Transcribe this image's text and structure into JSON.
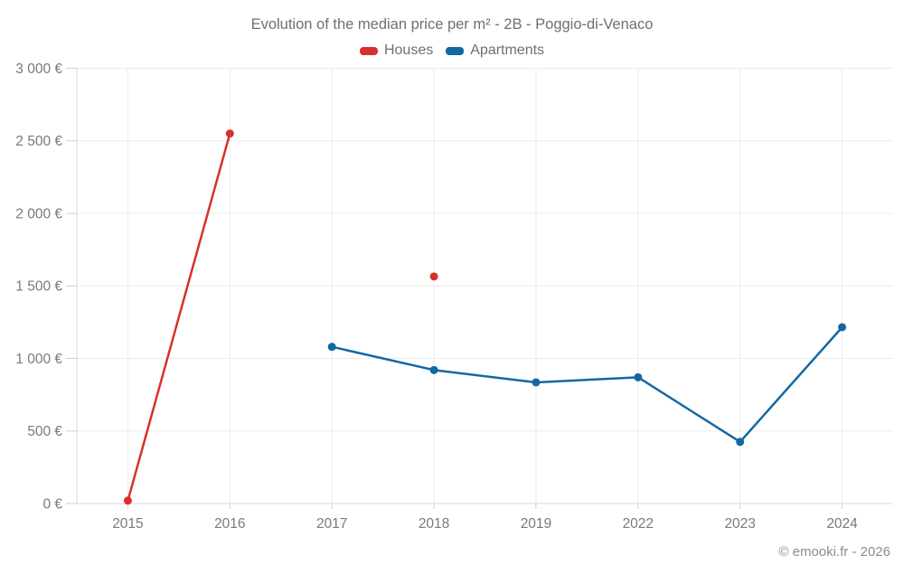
{
  "header": {
    "title": "Evolution of the median price per m² - 2B - Poggio-di-Venaco"
  },
  "legend": [
    {
      "label": "Houses",
      "color": "#d8302a"
    },
    {
      "label": "Apartments",
      "color": "#1268a3"
    }
  ],
  "footer": {
    "credit": "© emooki.fr - 2026"
  },
  "chart_data": {
    "type": "line",
    "title": "Evolution of the median price per m² - 2B - Poggio-di-Venaco",
    "categories": [
      "2015",
      "2016",
      "2017",
      "2018",
      "2019",
      "2022",
      "2023",
      "2024"
    ],
    "series": [
      {
        "name": "Houses",
        "color": "#d8302a",
        "values": [
          20,
          2550,
          null,
          1565,
          null,
          null,
          null,
          null
        ]
      },
      {
        "name": "Apartments",
        "color": "#1268a3",
        "values": [
          null,
          null,
          1080,
          920,
          835,
          870,
          425,
          1215
        ]
      }
    ],
    "ylim": [
      0,
      3000
    ],
    "ytick_step": 500,
    "yticks": [
      "0 €",
      "500 €",
      "1 000 €",
      "1 500 €",
      "2 000 €",
      "2 500 €",
      "3 000 €"
    ],
    "grid": true,
    "legend_position": "top",
    "colors": {
      "gridline": "#ececec",
      "axis": "#d9d9d9",
      "tick": "#cfcfcf",
      "tick_text": "#7a7a7a"
    }
  }
}
